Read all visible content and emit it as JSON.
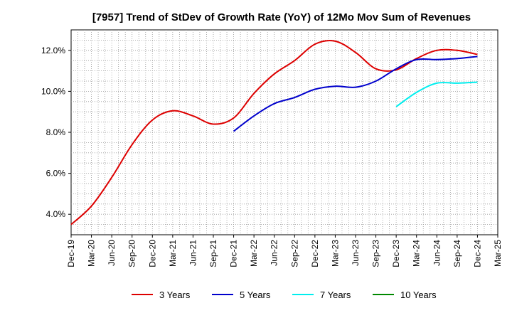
{
  "chart_data": {
    "type": "line",
    "title": "[7957]  Trend of StDev of Growth Rate (YoY) of 12Mo Mov Sum of Revenues",
    "xlabel": "",
    "ylabel": "",
    "x": [
      "Dec-19",
      "Mar-20",
      "Jun-20",
      "Sep-20",
      "Dec-20",
      "Mar-21",
      "Jun-21",
      "Sep-21",
      "Dec-21",
      "Mar-22",
      "Jun-22",
      "Sep-22",
      "Dec-22",
      "Mar-23",
      "Jun-23",
      "Sep-23",
      "Dec-23",
      "Mar-24",
      "Jun-24",
      "Sep-24",
      "Dec-24",
      "Mar-25"
    ],
    "ylim": [
      3.0,
      13.0
    ],
    "yticks": [
      4.0,
      6.0,
      8.0,
      10.0,
      12.0
    ],
    "ytick_labels": [
      "4.0%",
      "6.0%",
      "8.0%",
      "10.0%",
      "12.0%"
    ],
    "grid": true,
    "legend_position": "bottom",
    "series": [
      {
        "name": "3 Years",
        "color": "#dd0000",
        "values": [
          3.5,
          4.4,
          5.8,
          7.4,
          8.6,
          9.05,
          8.8,
          8.4,
          8.7,
          9.9,
          10.85,
          11.5,
          12.3,
          12.45,
          11.9,
          11.1,
          11.05,
          11.6,
          12.0,
          12.0,
          11.8,
          null
        ]
      },
      {
        "name": "5 Years",
        "color": "#0000cc",
        "values": [
          null,
          null,
          null,
          null,
          null,
          null,
          null,
          null,
          8.05,
          8.8,
          9.4,
          9.7,
          10.1,
          10.25,
          10.2,
          10.5,
          11.1,
          11.55,
          11.55,
          11.6,
          11.7,
          null
        ]
      },
      {
        "name": "7 Years",
        "color": "#00eeee",
        "values": [
          null,
          null,
          null,
          null,
          null,
          null,
          null,
          null,
          null,
          null,
          null,
          null,
          null,
          null,
          null,
          null,
          9.25,
          9.95,
          10.4,
          10.4,
          10.45,
          null
        ]
      },
      {
        "name": "10 Years",
        "color": "#008800",
        "values": [
          null,
          null,
          null,
          null,
          null,
          null,
          null,
          null,
          null,
          null,
          null,
          null,
          null,
          null,
          null,
          null,
          null,
          null,
          null,
          null,
          null,
          null
        ]
      }
    ]
  }
}
